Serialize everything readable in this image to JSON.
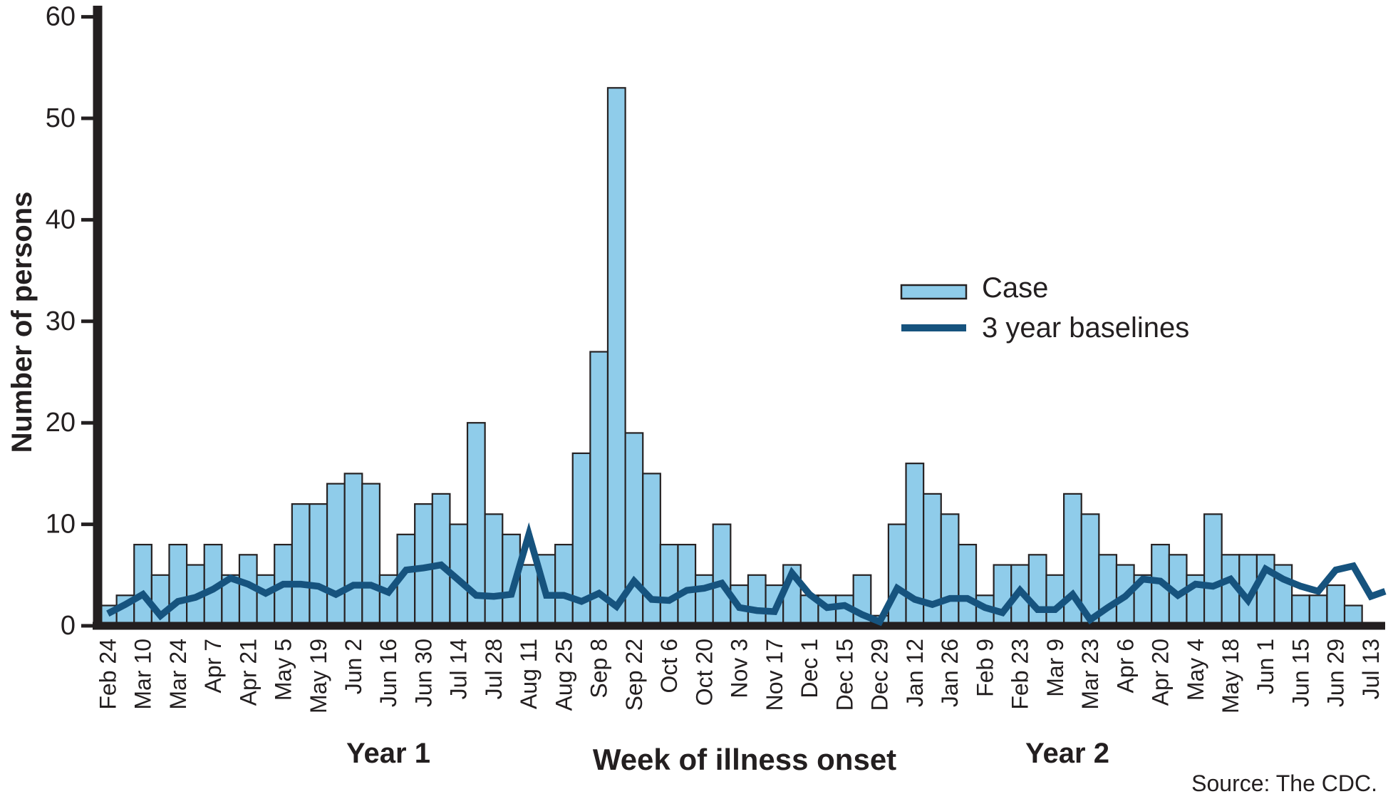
{
  "chart_data": {
    "type": "bar",
    "subtype": "epidemic-curve with overlaid baseline line",
    "title": "",
    "xlabel": "Week of illness onset",
    "ylabel": "Number of persons",
    "ylim": [
      0,
      60
    ],
    "yticks": [
      0,
      10,
      20,
      30,
      40,
      50,
      60
    ],
    "x_tick_labels": [
      "Feb 24",
      "Mar 10",
      "Mar 24",
      "Apr 7",
      "Apr 21",
      "May 5",
      "May 19",
      "Jun 2",
      "Jun 16",
      "Jun 30",
      "Jul 14",
      "Jul 28",
      "Aug 11",
      "Aug 25",
      "Sep 8",
      "Sep 22",
      "Oct 6",
      "Oct 20",
      "Nov 3",
      "Nov 17",
      "Dec 1",
      "Dec 15",
      "Dec 29",
      "Jan 12",
      "Jan 26",
      "Feb 9",
      "Feb 23",
      "Mar 9",
      "Mar 23",
      "Apr 6",
      "Apr 20",
      "May 4",
      "May 18",
      "Jun 1",
      "Jun 15",
      "Jun 29",
      "Jul 13"
    ],
    "x_tick_every_n_bars": 2,
    "weeks_total": 73,
    "series": [
      {
        "name": "Case",
        "type": "bar",
        "values": [
          2,
          3,
          8,
          5,
          8,
          6,
          8,
          5,
          7,
          5,
          8,
          12,
          12,
          14,
          15,
          14,
          5,
          9,
          12,
          13,
          10,
          20,
          11,
          9,
          6,
          7,
          8,
          17,
          27,
          53,
          19,
          15,
          8,
          8,
          5,
          10,
          4,
          5,
          4,
          6,
          3,
          3,
          3,
          5,
          1,
          10,
          16,
          13,
          11,
          8,
          3,
          6,
          6,
          7,
          5,
          13,
          11,
          7,
          6,
          5,
          8,
          7,
          5,
          11,
          7,
          7,
          7,
          6,
          3,
          3,
          4,
          2,
          0
        ]
      },
      {
        "name": "3 year baselines",
        "type": "line",
        "values": [
          1.2,
          2.1,
          3.1,
          1.0,
          2.4,
          2.8,
          3.6,
          4.7,
          4.1,
          3.2,
          4.1,
          4.1,
          3.9,
          3.1,
          4.0,
          4.0,
          3.3,
          5.5,
          5.7,
          6.0,
          4.5,
          3.0,
          2.9,
          3.1,
          9.0,
          3.0,
          3.0,
          2.4,
          3.2,
          1.9,
          4.4,
          2.6,
          2.5,
          3.5,
          3.7,
          4.2,
          1.8,
          1.5,
          1.4,
          5.2,
          3.1,
          1.8,
          2.0,
          1.1,
          0.4,
          3.7,
          2.6,
          2.1,
          2.7,
          2.7,
          1.8,
          1.3,
          3.5,
          1.6,
          1.6,
          3.1,
          0.6,
          1.8,
          2.9,
          4.6,
          4.4,
          3.0,
          4.1,
          3.9,
          4.6,
          2.5,
          5.6,
          4.6,
          3.9,
          3.4,
          5.5,
          5.9,
          2.9
        ],
        "end_extension_value": 3.4
      }
    ],
    "annotations": {
      "year1_label": "Year 1",
      "year2_label": "Year 2"
    },
    "legend_position": "upper right inside plot",
    "grid": false,
    "source_note": "Source: The CDC."
  },
  "legend": {
    "items": [
      {
        "label": "Case",
        "swatch": "bar"
      },
      {
        "label": "3 year baselines",
        "swatch": "line"
      }
    ]
  },
  "colors": {
    "bar_fill": "#8fccea",
    "bar_stroke": "#262223",
    "baseline_line": "#16537e",
    "axis": "#231f20",
    "text": "#231f20",
    "background": "#ffffff"
  }
}
